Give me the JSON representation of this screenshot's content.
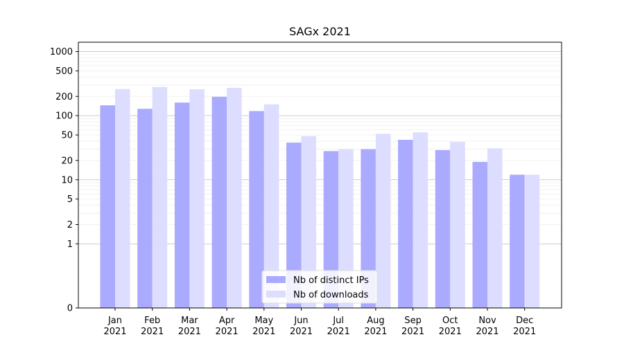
{
  "chart_data": {
    "type": "bar",
    "title": "SAGx 2021",
    "xlabel": "",
    "ylabel": "",
    "yscale": "symlog",
    "yticks": [
      0,
      1,
      2,
      5,
      10,
      20,
      50,
      100,
      200,
      500,
      1000
    ],
    "ytick_labels": [
      "0",
      "1",
      "2",
      "5",
      "10",
      "20",
      "50",
      "100",
      "200",
      "500",
      "1000"
    ],
    "categories": [
      "Jan\n2021",
      "Feb\n2021",
      "Mar\n2021",
      "Apr\n2021",
      "May\n2021",
      "Jun\n2021",
      "Jul\n2021",
      "Aug\n2021",
      "Sep\n2021",
      "Oct\n2021",
      "Nov\n2021",
      "Dec\n2021"
    ],
    "category_lines": [
      [
        "Jan",
        "2021"
      ],
      [
        "Feb",
        "2021"
      ],
      [
        "Mar",
        "2021"
      ],
      [
        "Apr",
        "2021"
      ],
      [
        "May",
        "2021"
      ],
      [
        "Jun",
        "2021"
      ],
      [
        "Jul",
        "2021"
      ],
      [
        "Aug",
        "2021"
      ],
      [
        "Sep",
        "2021"
      ],
      [
        "Oct",
        "2021"
      ],
      [
        "Nov",
        "2021"
      ],
      [
        "Dec",
        "2021"
      ]
    ],
    "series": [
      {
        "name": "Nb of distinct IPs",
        "color": "#aaaaff",
        "values": [
          145,
          128,
          160,
          197,
          118,
          38,
          28,
          30,
          42,
          29,
          19,
          12
        ]
      },
      {
        "name": "Nb of downloads",
        "color": "#ddddff",
        "values": [
          260,
          280,
          258,
          272,
          150,
          48,
          30,
          52,
          55,
          39,
          31,
          12
        ]
      }
    ],
    "grid": true,
    "legend_position": "bottom-center"
  }
}
